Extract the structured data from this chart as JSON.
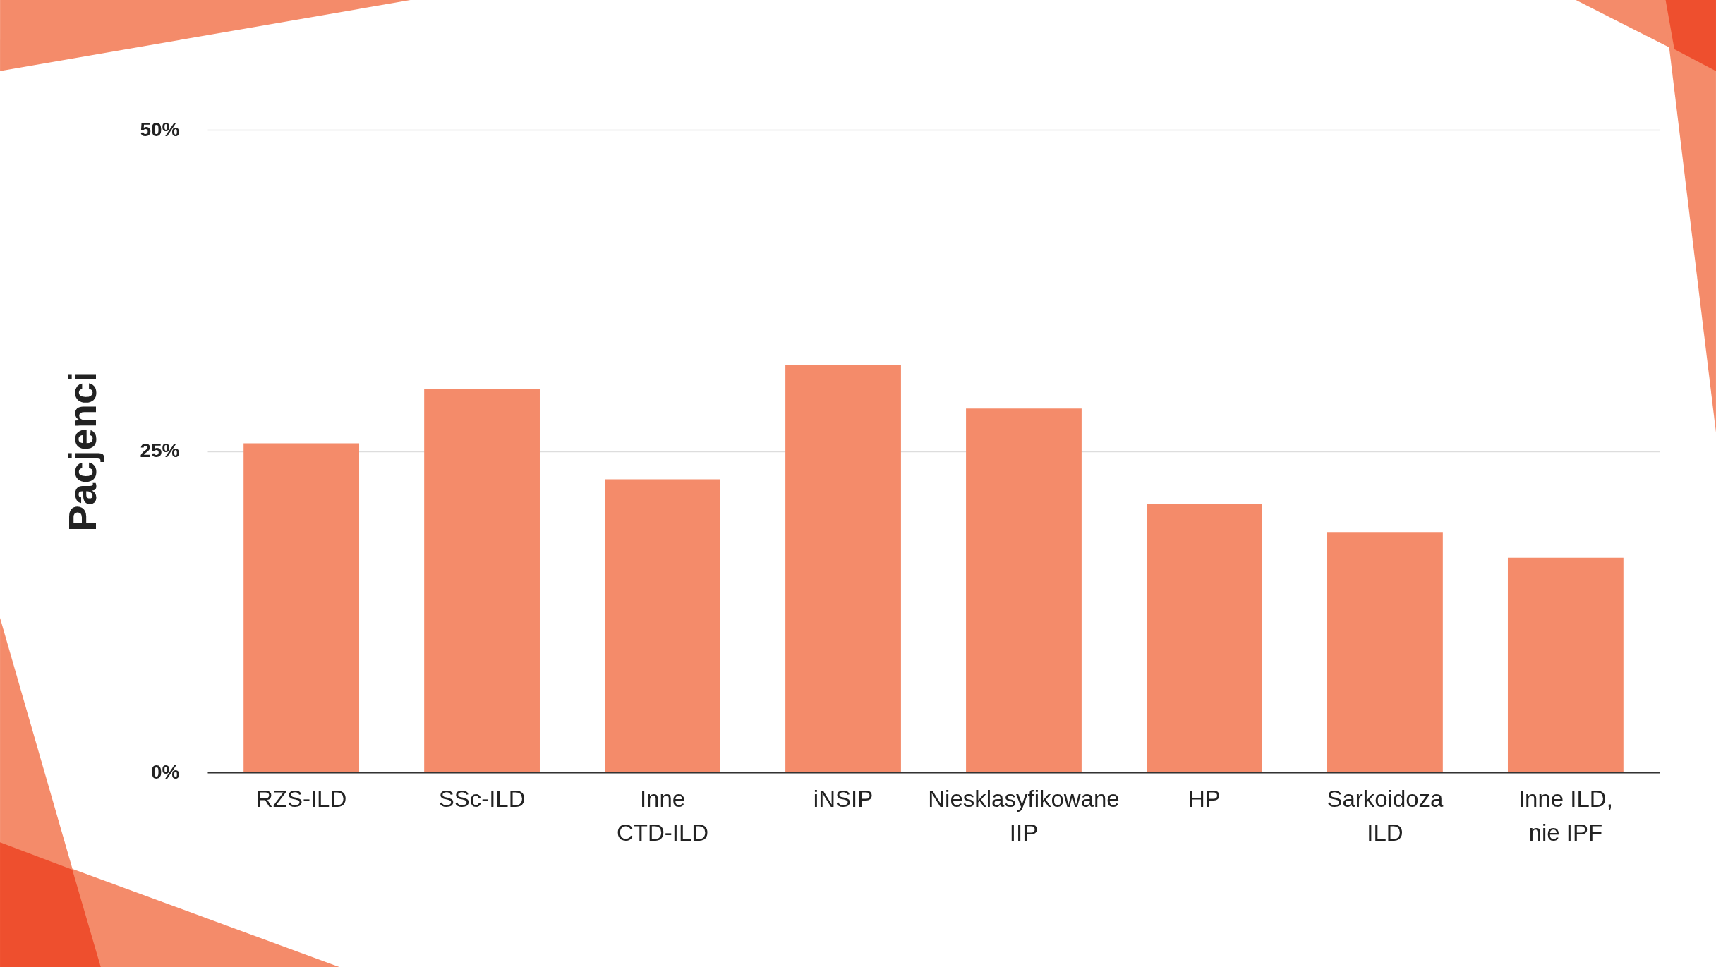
{
  "chart_data": {
    "type": "bar",
    "ylabel": "Pacjenci",
    "categories": [
      "RZS-ILD",
      "SSc-ILD",
      "Inne CTD-ILD",
      "iNSIP",
      "Niesklasyfikowane IIP",
      "HP",
      "Sarkoidoza ILD",
      "Inne ILD, nie IPF"
    ],
    "values": [
      25.6,
      29.8,
      22.8,
      31.7,
      28.3,
      20.9,
      18.7,
      16.7
    ],
    "color": "#f48b6a",
    "ylim": [
      0,
      50
    ],
    "yticks": [
      {
        "value": 0,
        "label": "0%"
      },
      {
        "value": 25,
        "label": "25%"
      },
      {
        "value": 50,
        "label": "50%"
      }
    ],
    "grid": "y"
  }
}
